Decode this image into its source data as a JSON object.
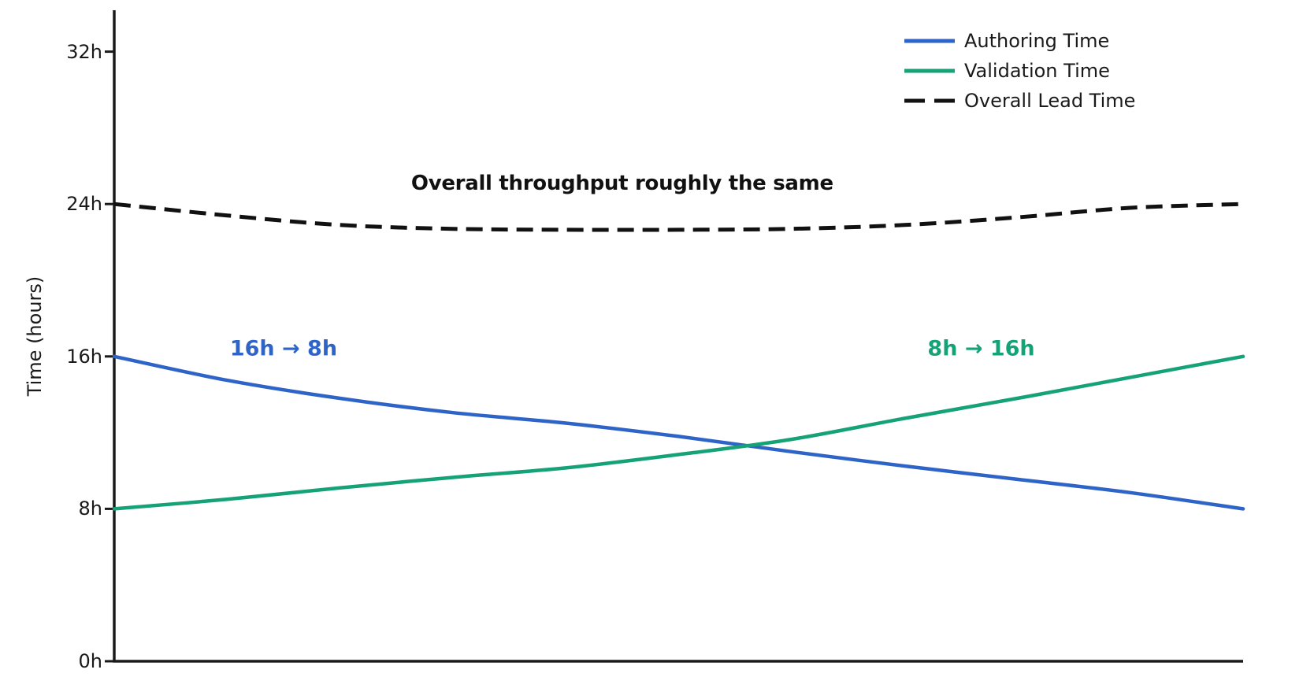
{
  "chart_data": {
    "type": "line",
    "title": "",
    "xlabel": "",
    "ylabel": "Time (hours)",
    "ylim": [
      0,
      34
    ],
    "grid": false,
    "legend_position": "upper right",
    "x_axis": {
      "label": "",
      "ticks": []
    },
    "yticks": [
      {
        "value": 0,
        "label": "0h"
      },
      {
        "value": 8,
        "label": "8h"
      },
      {
        "value": 16,
        "label": "16h"
      },
      {
        "value": 24,
        "label": "24h"
      },
      {
        "value": 32,
        "label": "32h"
      }
    ],
    "x": [
      0,
      0.1,
      0.2,
      0.3,
      0.4,
      0.5,
      0.6,
      0.7,
      0.8,
      0.9,
      1.0
    ],
    "series": [
      {
        "name": "Authoring Time",
        "color": "#2e63c8",
        "style": "solid",
        "values": [
          16.0,
          14.75,
          13.8,
          13.05,
          12.5,
          11.8,
          11.0,
          10.25,
          9.55,
          8.85,
          8.0
        ]
      },
      {
        "name": "Validation Time",
        "color": "#14a276",
        "style": "solid",
        "values": [
          8.0,
          8.5,
          9.1,
          9.65,
          10.15,
          10.85,
          11.65,
          12.75,
          13.8,
          14.9,
          16.0
        ]
      },
      {
        "name": "Overall Lead Time",
        "color": "#111111",
        "style": "dashed",
        "values": [
          24.0,
          23.4,
          22.9,
          22.7,
          22.65,
          22.65,
          22.7,
          22.9,
          23.3,
          23.8,
          24.0
        ]
      }
    ],
    "annotations": [
      {
        "text": "16h → 8h",
        "color": "#2e63c8",
        "t": 0.15,
        "hours": 16.4
      },
      {
        "text": "8h → 16h",
        "color": "#14a276",
        "t": 0.768,
        "hours": 16.4
      },
      {
        "text": "Overall throughput roughly the same",
        "color": "#111111",
        "t": 0.45,
        "hours": 25.1
      }
    ],
    "axis_color": "#1a1a1a",
    "background_color": "#ffffff"
  }
}
